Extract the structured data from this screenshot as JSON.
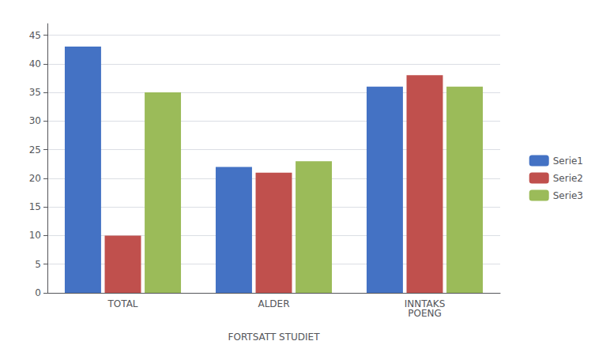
{
  "chart_data": {
    "type": "bar",
    "categories": [
      "TOTAL",
      "ALDER",
      "INNTAKS\nPOENG"
    ],
    "series": [
      {
        "name": "Serie1",
        "color": "#4472C4",
        "values": [
          43,
          22,
          36
        ]
      },
      {
        "name": "Serie2",
        "color": "#C0504D",
        "values": [
          10,
          21,
          38
        ]
      },
      {
        "name": "Serie3",
        "color": "#9BBB59",
        "values": [
          35,
          23,
          36
        ]
      }
    ],
    "xlabel": "FORTSATT STUDIET",
    "ylim": [
      0,
      47
    ],
    "yticks": [
      0,
      5,
      10,
      15,
      20,
      25,
      30,
      35,
      40,
      45
    ],
    "grid": true,
    "legend": "right"
  }
}
